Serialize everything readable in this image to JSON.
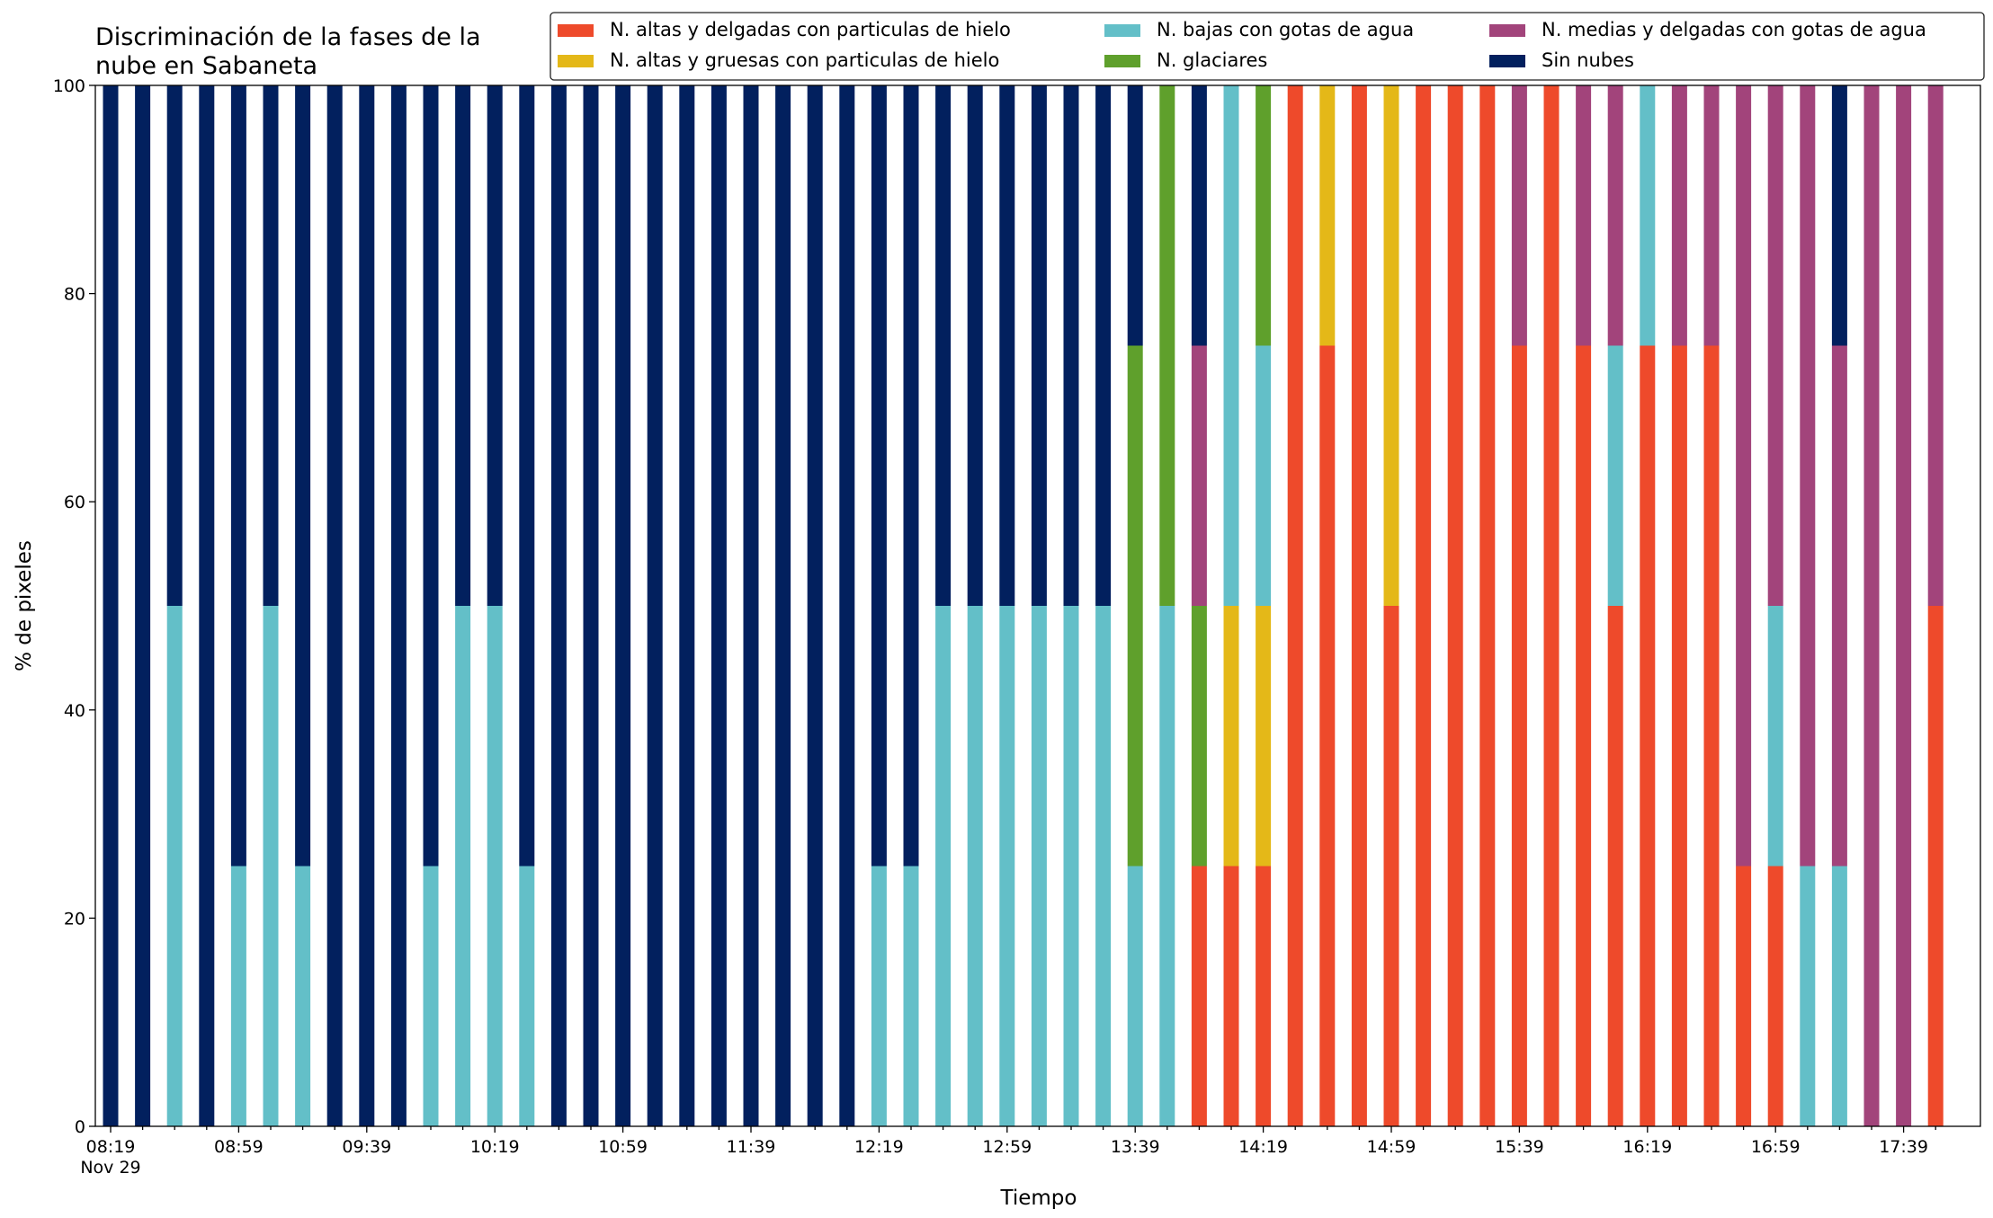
{
  "chart_data": {
    "type": "stacked_bar",
    "title": [
      "Discriminación de la fases de la",
      "nube en Sabaneta"
    ],
    "x_label": "Tiempo",
    "x_sublabel": "Nov 29",
    "y_label": "% de pixeles",
    "ylim": [
      0,
      100
    ],
    "yticks": [
      0,
      20,
      40,
      60,
      80,
      100
    ],
    "legend": "upper right",
    "categories": [
      "08:19",
      null,
      null,
      null,
      "08:59",
      null,
      null,
      null,
      "09:39",
      null,
      null,
      null,
      "10:19",
      null,
      null,
      null,
      "10:59",
      null,
      null,
      null,
      "11:39",
      null,
      null,
      null,
      "12:19",
      null,
      null,
      null,
      "12:59",
      null,
      null,
      null,
      "13:39",
      null,
      null,
      null,
      "14:19",
      null,
      null,
      null,
      "14:59",
      null,
      null,
      null,
      "15:39",
      null,
      null,
      null,
      "16:19",
      null,
      null,
      null,
      "16:59",
      null,
      null,
      null,
      "17:39",
      null
    ],
    "series": [
      {
        "name": "N. altas y delgadas con particulas de hielo",
        "color": "#ee4a2b",
        "values": [
          0,
          0,
          0,
          0,
          0,
          0,
          0,
          0,
          0,
          0,
          0,
          0,
          0,
          0,
          0,
          0,
          0,
          0,
          0,
          0,
          0,
          0,
          0,
          0,
          0,
          0,
          0,
          0,
          0,
          0,
          0,
          0,
          0,
          0,
          25,
          25,
          25,
          100,
          75,
          100,
          50,
          100,
          100,
          100,
          75,
          100,
          75,
          50,
          75,
          75,
          75,
          25,
          25,
          0,
          0,
          0,
          0,
          50
        ]
      },
      {
        "name": "N. altas y gruesas con particulas de hielo",
        "color": "#e4b818",
        "values": [
          0,
          0,
          0,
          0,
          0,
          0,
          0,
          0,
          0,
          0,
          0,
          0,
          0,
          0,
          0,
          0,
          0,
          0,
          0,
          0,
          0,
          0,
          0,
          0,
          0,
          0,
          0,
          0,
          0,
          0,
          0,
          0,
          0,
          0,
          0,
          25,
          25,
          0,
          25,
          0,
          50,
          0,
          0,
          0,
          0,
          0,
          0,
          0,
          0,
          0,
          0,
          0,
          0,
          0,
          0,
          0,
          0,
          0
        ]
      },
      {
        "name": "N. bajas con gotas de agua",
        "color": "#63bfc8",
        "values": [
          0,
          0,
          50,
          0,
          25,
          50,
          25,
          0,
          0,
          0,
          25,
          50,
          50,
          25,
          0,
          0,
          0,
          0,
          0,
          0,
          0,
          0,
          0,
          0,
          25,
          25,
          50,
          50,
          50,
          50,
          50,
          50,
          25,
          50,
          0,
          50,
          25,
          0,
          0,
          0,
          0,
          0,
          0,
          0,
          0,
          0,
          0,
          25,
          25,
          0,
          0,
          0,
          25,
          25,
          25,
          0,
          0,
          0
        ]
      },
      {
        "name": "N. glaciares",
        "color": "#5fa02c",
        "values": [
          0,
          0,
          0,
          0,
          0,
          0,
          0,
          0,
          0,
          0,
          0,
          0,
          0,
          0,
          0,
          0,
          0,
          0,
          0,
          0,
          0,
          0,
          0,
          0,
          0,
          0,
          0,
          0,
          0,
          0,
          0,
          0,
          50,
          50,
          25,
          0,
          25,
          0,
          0,
          0,
          0,
          0,
          0,
          0,
          0,
          0,
          0,
          0,
          0,
          0,
          0,
          0,
          0,
          0,
          0,
          0,
          0,
          0
        ]
      },
      {
        "name": "N. medias y delgadas con gotas de agua",
        "color": "#a2447b",
        "values": [
          0,
          0,
          0,
          0,
          0,
          0,
          0,
          0,
          0,
          0,
          0,
          0,
          0,
          0,
          0,
          0,
          0,
          0,
          0,
          0,
          0,
          0,
          0,
          0,
          0,
          0,
          0,
          0,
          0,
          0,
          0,
          0,
          0,
          0,
          25,
          0,
          0,
          0,
          0,
          0,
          0,
          0,
          0,
          0,
          25,
          0,
          25,
          25,
          0,
          25,
          25,
          75,
          50,
          75,
          50,
          100,
          100,
          50
        ]
      },
      {
        "name": "Sin nubes",
        "color": "#02205e",
        "values": [
          100,
          100,
          50,
          100,
          75,
          50,
          75,
          100,
          100,
          100,
          75,
          50,
          50,
          75,
          100,
          100,
          100,
          100,
          100,
          100,
          100,
          100,
          100,
          100,
          75,
          75,
          50,
          50,
          50,
          50,
          50,
          50,
          25,
          0,
          25,
          0,
          0,
          0,
          0,
          0,
          0,
          0,
          0,
          0,
          0,
          0,
          0,
          0,
          0,
          0,
          0,
          0,
          0,
          0,
          25,
          0,
          0,
          0
        ]
      }
    ]
  }
}
